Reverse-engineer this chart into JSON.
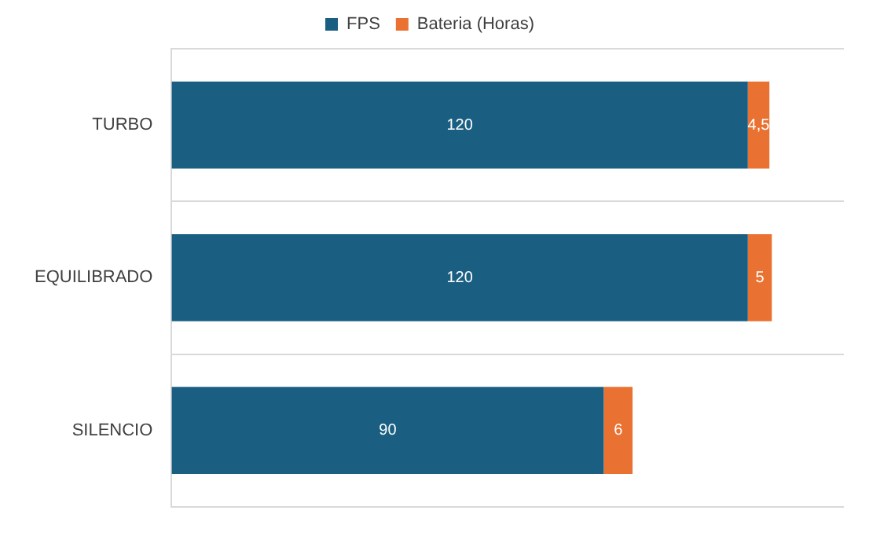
{
  "chart_data": {
    "type": "bar",
    "orientation": "horizontal",
    "stacked": true,
    "tick_labels": "y",
    "categories": [
      "TURBO",
      "EQUILIBRADO",
      "SILENCIO"
    ],
    "series": [
      {
        "name": "FPS",
        "color": "#1a5f82",
        "values": [
          120,
          120,
          90
        ],
        "value_labels": [
          "120",
          "120",
          "90"
        ]
      },
      {
        "name": "Bateria (Horas)",
        "color": "#e97132",
        "values": [
          4.5,
          5,
          6
        ],
        "value_labels": [
          "4,5",
          "5",
          "6"
        ]
      }
    ],
    "grid": "y",
    "legend": "top"
  }
}
